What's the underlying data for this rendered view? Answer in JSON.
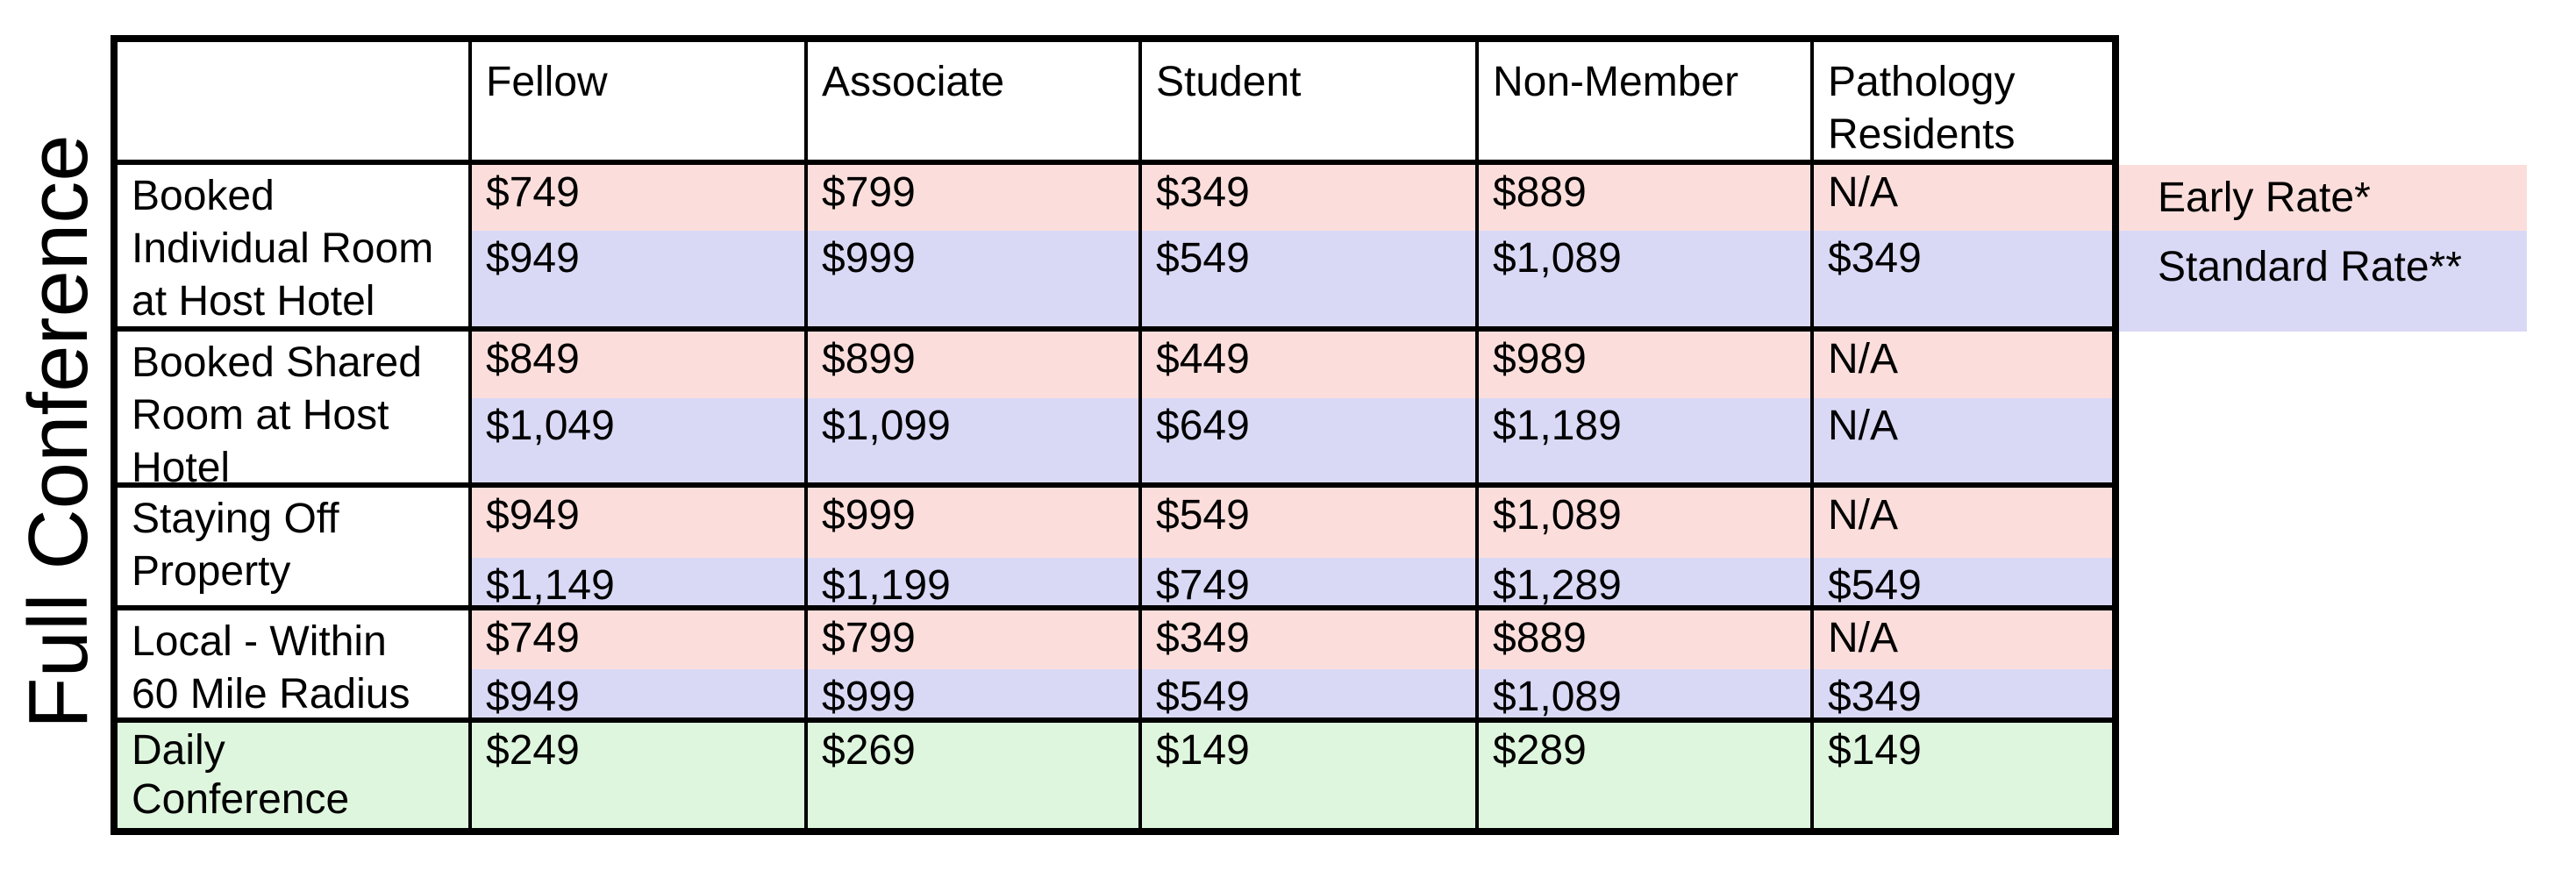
{
  "side_label": "Full Conference",
  "legend": {
    "early": "Early Rate*",
    "standard": "Standard Rate**"
  },
  "colors": {
    "early_rate_bg": "#fbdedb",
    "standard_rate_bg": "#d9d9f6",
    "daily_bg": "#dff6de",
    "border": "#000000"
  },
  "table": {
    "columns": [
      "Fellow",
      "Associate",
      "Student",
      "Non-Member",
      "Pathology\nResidents"
    ],
    "row_groups": [
      {
        "label": "Booked\nIndividual Room\nat Host Hotel",
        "early": [
          "$749",
          "$799",
          "$349",
          "$889",
          "N/A"
        ],
        "standard": [
          "$949",
          "$999",
          "$549",
          "$1,089",
          "$349"
        ]
      },
      {
        "label": "Booked Shared\nRoom at Host\nHotel",
        "early": [
          "$849",
          "$899",
          "$449",
          "$989",
          "N/A"
        ],
        "standard": [
          "$1,049",
          "$1,099",
          "$649",
          "$1,189",
          "N/A"
        ]
      },
      {
        "label": "Staying Off\nProperty",
        "early": [
          "$949",
          "$999",
          "$549",
          "$1,089",
          "N/A"
        ],
        "standard": [
          "$1,149",
          "$1,199",
          "$749",
          "$1,289",
          "$549"
        ]
      },
      {
        "label": "Local - Within\n60 Mile Radius",
        "early": [
          "$749",
          "$799",
          "$349",
          "$889",
          "N/A"
        ],
        "standard": [
          "$949",
          "$999",
          "$549",
          "$1,089",
          "$349"
        ]
      }
    ],
    "daily_row": {
      "label": "Daily\nConference",
      "values": [
        "$249",
        "$269",
        "$149",
        "$289",
        "$149"
      ]
    }
  }
}
